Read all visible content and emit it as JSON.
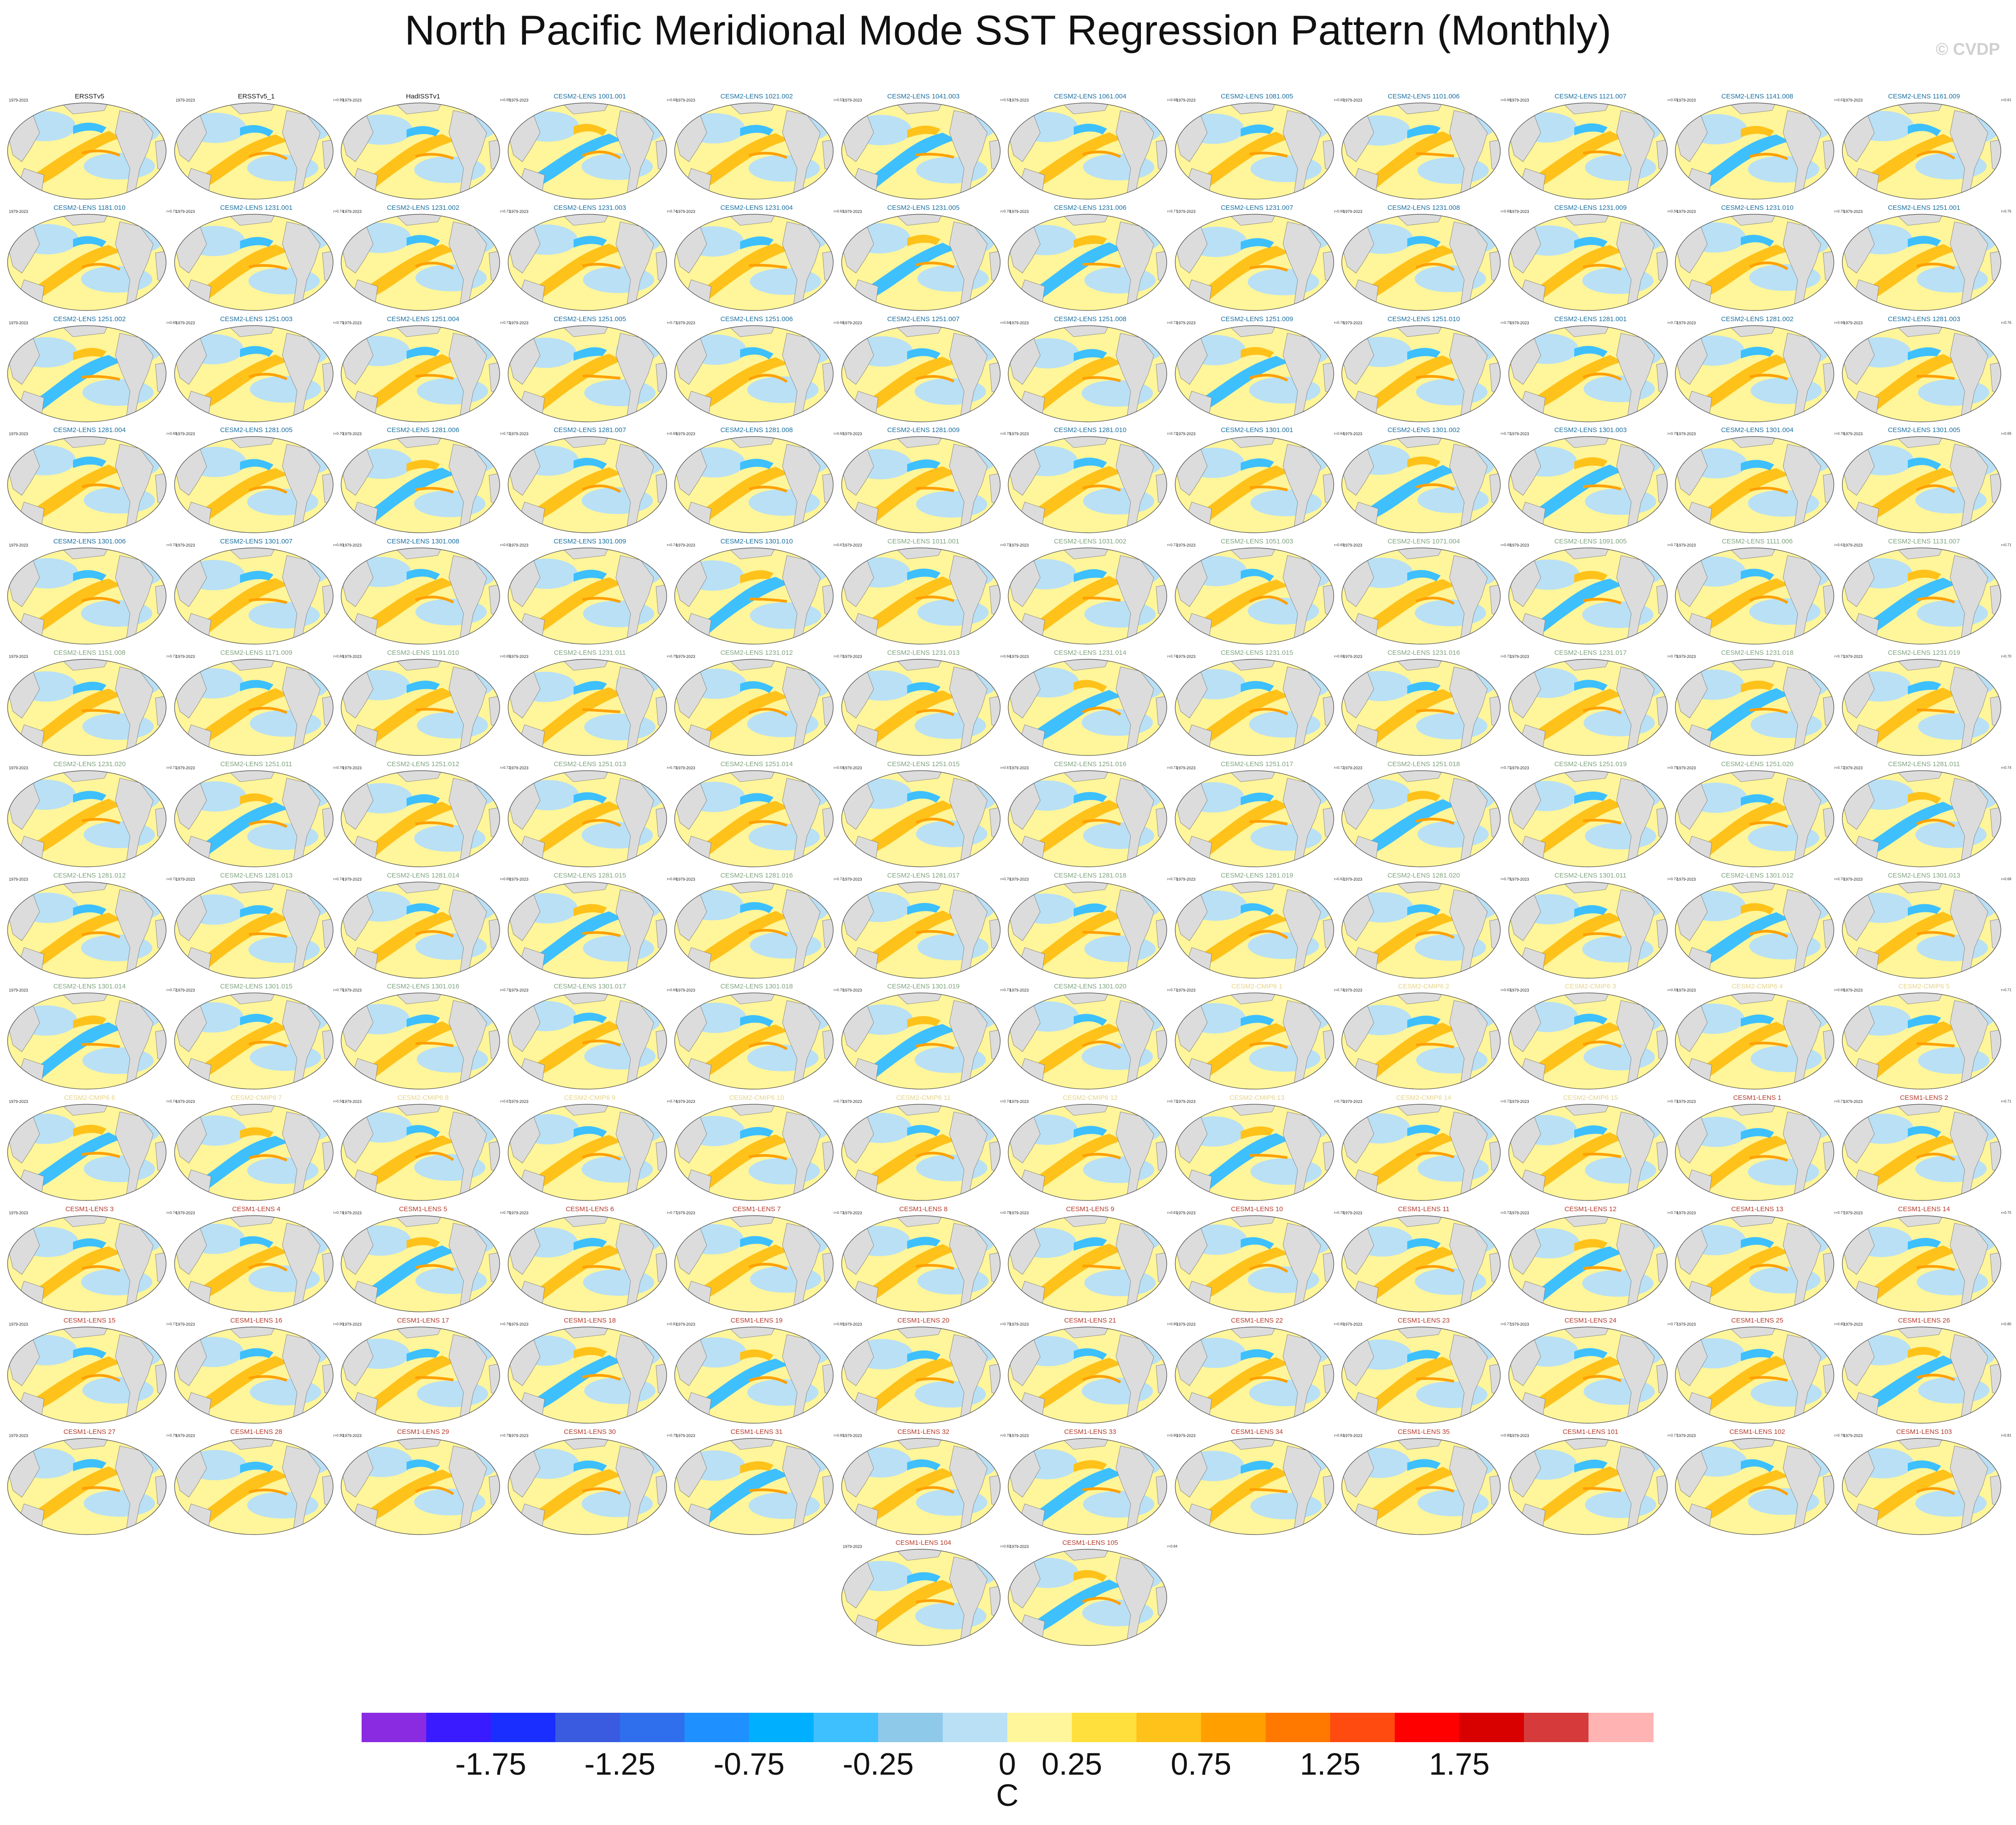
{
  "title": "North Pacific Meridional Mode SST Regression Pattern (Monthly)",
  "credit": "© CVDP",
  "years": "1979-2023",
  "panels": [
    {
      "name": "ERSSTv5",
      "r": "",
      "color": "#111111"
    },
    {
      "name": "ERSSTv5_1",
      "r": "r=0.99",
      "color": "#111111"
    },
    {
      "name": "HadISSTv1",
      "r": "r=0.95",
      "color": "#111111"
    },
    {
      "name": "CESM2-LENS 1001.001",
      "r": "r=0.60",
      "color": "#1a6fa0"
    },
    {
      "name": "CESM2-LENS 1021.002",
      "r": "r=0.53",
      "color": "#1a6fa0"
    },
    {
      "name": "CESM2-LENS 1041.003",
      "r": "r=0.53",
      "color": "#1a6fa0"
    },
    {
      "name": "CESM2-LENS 1061.004",
      "r": "r=0.68",
      "color": "#1a6fa0"
    },
    {
      "name": "CESM2-LENS 1081.005",
      "r": "r=0.60",
      "color": "#1a6fa0"
    },
    {
      "name": "CESM2-LENS 1101.006",
      "r": "r=0.66",
      "color": "#1a6fa0"
    },
    {
      "name": "CESM2-LENS 1121.007",
      "r": "r=0.55",
      "color": "#1a6fa0"
    },
    {
      "name": "CESM2-LENS 1141.008",
      "r": "r=0.61",
      "color": "#1a6fa0"
    },
    {
      "name": "CESM2-LENS 1161.009",
      "r": "r=0.61",
      "color": "#1a6fa0"
    },
    {
      "name": "CESM2-LENS 1181.010",
      "r": "r=0.71",
      "color": "#1a6fa0"
    },
    {
      "name": "CESM2-LENS 1231.001",
      "r": "r=0.74",
      "color": "#1a6fa0"
    },
    {
      "name": "CESM2-LENS 1231.002",
      "r": "r=0.72",
      "color": "#1a6fa0"
    },
    {
      "name": "CESM2-LENS 1231.003",
      "r": "r=0.74",
      "color": "#1a6fa0"
    },
    {
      "name": "CESM2-LENS 1231.004",
      "r": "r=0.60",
      "color": "#1a6fa0"
    },
    {
      "name": "CESM2-LENS 1231.005",
      "r": "r=0.76",
      "color": "#1a6fa0"
    },
    {
      "name": "CESM2-LENS 1231.006",
      "r": "r=0.77",
      "color": "#1a6fa0"
    },
    {
      "name": "CESM2-LENS 1231.007",
      "r": "r=0.66",
      "color": "#1a6fa0"
    },
    {
      "name": "CESM2-LENS 1231.008",
      "r": "r=0.69",
      "color": "#1a6fa0"
    },
    {
      "name": "CESM2-LENS 1231.009",
      "r": "r=0.56",
      "color": "#1a6fa0"
    },
    {
      "name": "CESM2-LENS 1231.010",
      "r": "r=0.75",
      "color": "#1a6fa0"
    },
    {
      "name": "CESM2-LENS 1251.001",
      "r": "r=0.76",
      "color": "#1a6fa0"
    },
    {
      "name": "CESM2-LENS 1251.002",
      "r": "r=0.69",
      "color": "#1a6fa0"
    },
    {
      "name": "CESM2-LENS 1251.003",
      "r": "r=0.75",
      "color": "#1a6fa0"
    },
    {
      "name": "CESM2-LENS 1251.004",
      "r": "r=0.73",
      "color": "#1a6fa0"
    },
    {
      "name": "CESM2-LENS 1251.005",
      "r": "r=0.71",
      "color": "#1a6fa0"
    },
    {
      "name": "CESM2-LENS 1251.006",
      "r": "r=0.68",
      "color": "#1a6fa0"
    },
    {
      "name": "CESM2-LENS 1251.007",
      "r": "r=0.64",
      "color": "#1a6fa0"
    },
    {
      "name": "CESM2-LENS 1251.008",
      "r": "r=0.73",
      "color": "#1a6fa0"
    },
    {
      "name": "CESM2-LENS 1251.009",
      "r": "r=0.76",
      "color": "#1a6fa0"
    },
    {
      "name": "CESM2-LENS 1251.010",
      "r": "r=0.70",
      "color": "#1a6fa0"
    },
    {
      "name": "CESM2-LENS 1281.001",
      "r": "r=0.72",
      "color": "#1a6fa0"
    },
    {
      "name": "CESM2-LENS 1281.002",
      "r": "r=0.66",
      "color": "#1a6fa0"
    },
    {
      "name": "CESM2-LENS 1281.003",
      "r": "r=0.76",
      "color": "#1a6fa0"
    },
    {
      "name": "CESM2-LENS 1281.004",
      "r": "r=0.69",
      "color": "#1a6fa0"
    },
    {
      "name": "CESM2-LENS 1281.005",
      "r": "r=0.70",
      "color": "#1a6fa0"
    },
    {
      "name": "CESM2-LENS 1281.006",
      "r": "r=0.72",
      "color": "#1a6fa0"
    },
    {
      "name": "CESM2-LENS 1281.007",
      "r": "r=0.69",
      "color": "#1a6fa0"
    },
    {
      "name": "CESM2-LENS 1281.008",
      "r": "r=0.60",
      "color": "#1a6fa0"
    },
    {
      "name": "CESM2-LENS 1281.009",
      "r": "r=0.75",
      "color": "#1a6fa0"
    },
    {
      "name": "CESM2-LENS 1281.010",
      "r": "r=0.72",
      "color": "#1a6fa0"
    },
    {
      "name": "CESM2-LENS 1301.001",
      "r": "r=0.64",
      "color": "#1a6fa0"
    },
    {
      "name": "CESM2-LENS 1301.002",
      "r": "r=0.71",
      "color": "#1a6fa0"
    },
    {
      "name": "CESM2-LENS 1301.003",
      "r": "r=0.75",
      "color": "#1a6fa0"
    },
    {
      "name": "CESM2-LENS 1301.004",
      "r": "r=0.76",
      "color": "#1a6fa0"
    },
    {
      "name": "CESM2-LENS 1301.005",
      "r": "r=0.69",
      "color": "#1a6fa0"
    },
    {
      "name": "CESM2-LENS 1301.006",
      "r": "r=0.70",
      "color": "#1a6fa0"
    },
    {
      "name": "CESM2-LENS 1301.007",
      "r": "r=0.60",
      "color": "#1a6fa0"
    },
    {
      "name": "CESM2-LENS 1301.008",
      "r": "r=0.63",
      "color": "#1a6fa0"
    },
    {
      "name": "CESM2-LENS 1301.009",
      "r": "r=0.74",
      "color": "#1a6fa0"
    },
    {
      "name": "CESM2-LENS 1301.010",
      "r": "r=0.67",
      "color": "#1a6fa0"
    },
    {
      "name": "CESM2-LENS 1011.001",
      "r": "r=0.73",
      "color": "#7fa37f"
    },
    {
      "name": "CESM2-LENS 1031.002",
      "r": "r=0.72",
      "color": "#7fa37f"
    },
    {
      "name": "CESM2-LENS 1051.003",
      "r": "r=0.69",
      "color": "#7fa37f"
    },
    {
      "name": "CESM2-LENS 1071.004",
      "r": "r=0.68",
      "color": "#7fa37f"
    },
    {
      "name": "CESM2-LENS 1091.005",
      "r": "r=0.72",
      "color": "#7fa37f"
    },
    {
      "name": "CESM2-LENS 1111.006",
      "r": "r=0.61",
      "color": "#7fa37f"
    },
    {
      "name": "CESM2-LENS 1131.007",
      "r": "r=0.71",
      "color": "#7fa37f"
    },
    {
      "name": "CESM2-LENS 1151.008",
      "r": "r=0.72",
      "color": "#7fa37f"
    },
    {
      "name": "CESM2-LENS 1171.009",
      "r": "r=0.66",
      "color": "#7fa37f"
    },
    {
      "name": "CESM2-LENS 1191.010",
      "r": "r=0.69",
      "color": "#7fa37f"
    },
    {
      "name": "CESM2-LENS 1231.011",
      "r": "r=0.75",
      "color": "#7fa37f"
    },
    {
      "name": "CESM2-LENS 1231.012",
      "r": "r=0.70",
      "color": "#7fa37f"
    },
    {
      "name": "CESM2-LENS 1231.013",
      "r": "r=0.64",
      "color": "#7fa37f"
    },
    {
      "name": "CESM2-LENS 1231.014",
      "r": "r=0.74",
      "color": "#7fa37f"
    },
    {
      "name": "CESM2-LENS 1231.015",
      "r": "r=0.69",
      "color": "#7fa37f"
    },
    {
      "name": "CESM2-LENS 1231.016",
      "r": "r=0.72",
      "color": "#7fa37f"
    },
    {
      "name": "CESM2-LENS 1231.017",
      "r": "r=0.75",
      "color": "#7fa37f"
    },
    {
      "name": "CESM2-LENS 1231.018",
      "r": "r=0.71",
      "color": "#7fa37f"
    },
    {
      "name": "CESM2-LENS 1231.019",
      "r": "r=0.70",
      "color": "#7fa37f"
    },
    {
      "name": "CESM2-LENS 1231.020",
      "r": "r=0.71",
      "color": "#7fa37f"
    },
    {
      "name": "CESM2-LENS 1251.011",
      "r": "r=0.76",
      "color": "#7fa37f"
    },
    {
      "name": "CESM2-LENS 1251.012",
      "r": "r=0.72",
      "color": "#7fa37f"
    },
    {
      "name": "CESM2-LENS 1251.013",
      "r": "r=0.70",
      "color": "#7fa37f"
    },
    {
      "name": "CESM2-LENS 1251.014",
      "r": "r=0.58",
      "color": "#7fa37f"
    },
    {
      "name": "CESM2-LENS 1251.015",
      "r": "r=0.67",
      "color": "#7fa37f"
    },
    {
      "name": "CESM2-LENS 1251.016",
      "r": "r=0.73",
      "color": "#7fa37f"
    },
    {
      "name": "CESM2-LENS 1251.017",
      "r": "r=0.72",
      "color": "#7fa37f"
    },
    {
      "name": "CESM2-LENS 1251.018",
      "r": "r=0.71",
      "color": "#7fa37f"
    },
    {
      "name": "CESM2-LENS 1251.019",
      "r": "r=0.75",
      "color": "#7fa37f"
    },
    {
      "name": "CESM2-LENS 1251.020",
      "r": "r=0.72",
      "color": "#7fa37f"
    },
    {
      "name": "CESM2-LENS 1281.011",
      "r": "r=0.74",
      "color": "#7fa37f"
    },
    {
      "name": "CESM2-LENS 1281.012",
      "r": "r=0.71",
      "color": "#7fa37f"
    },
    {
      "name": "CESM2-LENS 1281.013",
      "r": "r=0.74",
      "color": "#7fa37f"
    },
    {
      "name": "CESM2-LENS 1281.014",
      "r": "r=0.69",
      "color": "#7fa37f"
    },
    {
      "name": "CESM2-LENS 1281.015",
      "r": "r=0.66",
      "color": "#7fa37f"
    },
    {
      "name": "CESM2-LENS 1281.016",
      "r": "r=0.72",
      "color": "#7fa37f"
    },
    {
      "name": "CESM2-LENS 1281.017",
      "r": "r=0.70",
      "color": "#7fa37f"
    },
    {
      "name": "CESM2-LENS 1281.018",
      "r": "r=0.73",
      "color": "#7fa37f"
    },
    {
      "name": "CESM2-LENS 1281.019",
      "r": "r=0.62",
      "color": "#7fa37f"
    },
    {
      "name": "CESM2-LENS 1281.020",
      "r": "r=0.75",
      "color": "#7fa37f"
    },
    {
      "name": "CESM2-LENS 1301.011",
      "r": "r=0.72",
      "color": "#7fa37f"
    },
    {
      "name": "CESM2-LENS 1301.012",
      "r": "r=0.70",
      "color": "#7fa37f"
    },
    {
      "name": "CESM2-LENS 1301.013",
      "r": "r=0.68",
      "color": "#7fa37f"
    },
    {
      "name": "CESM2-LENS 1301.014",
      "r": "r=0.72",
      "color": "#7fa37f"
    },
    {
      "name": "CESM2-LENS 1301.015",
      "r": "r=0.75",
      "color": "#7fa37f"
    },
    {
      "name": "CESM2-LENS 1301.016",
      "r": "r=0.71",
      "color": "#7fa37f"
    },
    {
      "name": "CESM2-LENS 1301.017",
      "r": "r=0.69",
      "color": "#7fa37f"
    },
    {
      "name": "CESM2-LENS 1301.018",
      "r": "r=0.70",
      "color": "#7fa37f"
    },
    {
      "name": "CESM2-LENS 1301.019",
      "r": "r=0.73",
      "color": "#7fa37f"
    },
    {
      "name": "CESM2-LENS 1301.020",
      "r": "r=0.71",
      "color": "#7fa37f"
    },
    {
      "name": "CESM2-CMIP6 1",
      "r": "r=0.74",
      "color": "#e5d48a"
    },
    {
      "name": "CESM2-CMIP6 2",
      "r": "r=0.63",
      "color": "#e5d48a"
    },
    {
      "name": "CESM2-CMIP6 3",
      "r": "r=0.59",
      "color": "#e5d48a"
    },
    {
      "name": "CESM2-CMIP6 4",
      "r": "r=0.69",
      "color": "#e5d48a"
    },
    {
      "name": "CESM2-CMIP6 5",
      "r": "r=0.71",
      "color": "#e5d48a"
    },
    {
      "name": "CESM2-CMIP6 6",
      "r": "r=0.74",
      "color": "#e5d48a"
    },
    {
      "name": "CESM2-CMIP6 7",
      "r": "r=0.56",
      "color": "#e5d48a"
    },
    {
      "name": "CESM2-CMIP6 8",
      "r": "r=0.67",
      "color": "#e5d48a"
    },
    {
      "name": "CESM2-CMIP6 9",
      "r": "r=0.74",
      "color": "#e5d48a"
    },
    {
      "name": "CESM2-CMIP6 10",
      "r": "r=0.73",
      "color": "#e5d48a"
    },
    {
      "name": "CESM2-CMIP6 11",
      "r": "r=0.74",
      "color": "#e5d48a"
    },
    {
      "name": "CESM2-CMIP6 12",
      "r": "r=0.72",
      "color": "#e5d48a"
    },
    {
      "name": "CESM2-CMIP6 13",
      "r": "r=0.70",
      "color": "#e5d48a"
    },
    {
      "name": "CESM2-CMIP6 14",
      "r": "r=0.72",
      "color": "#e5d48a"
    },
    {
      "name": "CESM2-CMIP6 15",
      "r": "r=0.73",
      "color": "#e5d48a"
    },
    {
      "name": "CESM1-LENS 1",
      "r": "r=0.71",
      "color": "#b5392a"
    },
    {
      "name": "CESM1-LENS 2",
      "r": "r=0.71",
      "color": "#b5392a"
    },
    {
      "name": "CESM1-LENS 3",
      "r": "r=0.74",
      "color": "#b5392a"
    },
    {
      "name": "CESM1-LENS 4",
      "r": "r=0.74",
      "color": "#b5392a"
    },
    {
      "name": "CESM1-LENS 5",
      "r": "r=0.75",
      "color": "#b5392a"
    },
    {
      "name": "CESM1-LENS 6",
      "r": "r=0.77",
      "color": "#b5392a"
    },
    {
      "name": "CESM1-LENS 7",
      "r": "r=0.73",
      "color": "#b5392a"
    },
    {
      "name": "CESM1-LENS 8",
      "r": "r=0.75",
      "color": "#b5392a"
    },
    {
      "name": "CESM1-LENS 9",
      "r": "r=0.81",
      "color": "#b5392a"
    },
    {
      "name": "CESM1-LENS 10",
      "r": "r=0.78",
      "color": "#b5392a"
    },
    {
      "name": "CESM1-LENS 11",
      "r": "r=0.72",
      "color": "#b5392a"
    },
    {
      "name": "CESM1-LENS 12",
      "r": "r=0.74",
      "color": "#b5392a"
    },
    {
      "name": "CESM1-LENS 13",
      "r": "r=0.77",
      "color": "#b5392a"
    },
    {
      "name": "CESM1-LENS 14",
      "r": "r=0.75",
      "color": "#b5392a"
    },
    {
      "name": "CESM1-LENS 15",
      "r": "r=0.77",
      "color": "#b5392a"
    },
    {
      "name": "CESM1-LENS 16",
      "r": "r=0.80",
      "color": "#b5392a"
    },
    {
      "name": "CESM1-LENS 17",
      "r": "r=0.76",
      "color": "#b5392a"
    },
    {
      "name": "CESM1-LENS 18",
      "r": "r=0.81",
      "color": "#b5392a"
    },
    {
      "name": "CESM1-LENS 19",
      "r": "r=0.80",
      "color": "#b5392a"
    },
    {
      "name": "CESM1-LENS 20",
      "r": "r=0.75",
      "color": "#b5392a"
    },
    {
      "name": "CESM1-LENS 21",
      "r": "r=0.80",
      "color": "#b5392a"
    },
    {
      "name": "CESM1-LENS 22",
      "r": "r=0.80",
      "color": "#b5392a"
    },
    {
      "name": "CESM1-LENS 23",
      "r": "r=0.77",
      "color": "#b5392a"
    },
    {
      "name": "CESM1-LENS 24",
      "r": "r=0.77",
      "color": "#b5392a"
    },
    {
      "name": "CESM1-LENS 25",
      "r": "r=0.80",
      "color": "#b5392a"
    },
    {
      "name": "CESM1-LENS 26",
      "r": "r=0.80",
      "color": "#b5392a"
    },
    {
      "name": "CESM1-LENS 27",
      "r": "r=0.79",
      "color": "#b5392a"
    },
    {
      "name": "CESM1-LENS 28",
      "r": "r=0.80",
      "color": "#b5392a"
    },
    {
      "name": "CESM1-LENS 29",
      "r": "r=0.79",
      "color": "#b5392a"
    },
    {
      "name": "CESM1-LENS 30",
      "r": "r=0.75",
      "color": "#b5392a"
    },
    {
      "name": "CESM1-LENS 31",
      "r": "r=0.80",
      "color": "#b5392a"
    },
    {
      "name": "CESM1-LENS 32",
      "r": "r=0.79",
      "color": "#b5392a"
    },
    {
      "name": "CESM1-LENS 33",
      "r": "r=0.80",
      "color": "#b5392a"
    },
    {
      "name": "CESM1-LENS 34",
      "r": "r=0.83",
      "color": "#b5392a"
    },
    {
      "name": "CESM1-LENS 35",
      "r": "r=0.80",
      "color": "#b5392a"
    },
    {
      "name": "CESM1-LENS 101",
      "r": "r=0.77",
      "color": "#b5392a"
    },
    {
      "name": "CESM1-LENS 102",
      "r": "r=0.78",
      "color": "#b5392a"
    },
    {
      "name": "CESM1-LENS 103",
      "r": "r=0.81",
      "color": "#b5392a"
    },
    {
      "name": "CESM1-LENS 104",
      "r": "r=0.82",
      "color": "#b5392a"
    },
    {
      "name": "CESM1-LENS 105",
      "r": "r=0.84",
      "color": "#b5392a"
    }
  ],
  "colorbar": {
    "colors": [
      "#8a2be2",
      "#3a1aff",
      "#1a2eff",
      "#3a5ae0",
      "#2f6fee",
      "#1e90ff",
      "#00b0ff",
      "#3ec0ff",
      "#8fc9ea",
      "#b9e0f5",
      "#fff59a",
      "#ffe03c",
      "#ffc21a",
      "#ffa000",
      "#ff7800",
      "#ff4a10",
      "#ff0000",
      "#d90000",
      "#d63a3a",
      "#ffb3b3"
    ],
    "labels": [
      "-1.75",
      "-1.25",
      "-0.75",
      "-0.25",
      "0",
      "0.25",
      "0.75",
      "1.25",
      "1.75"
    ],
    "unit": "C"
  },
  "palette": {
    "land": "#dcdcdc",
    "pos_mid": "#ffc21a",
    "pos_light": "#fff59a",
    "pos_strong": "#ffa000",
    "neg_light": "#b9e0f5",
    "neg_mid": "#3ec0ff",
    "neg_strong": "#1e90ff"
  }
}
